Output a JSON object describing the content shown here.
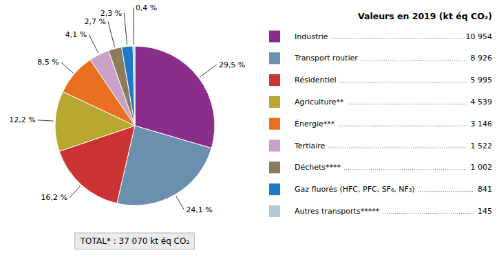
{
  "chart_data": {
    "type": "pie",
    "categories": [
      "Industrie",
      "Transport routier",
      "Résidentiel",
      "Agriculture**",
      "Énergie***",
      "Tertiaire",
      "Déchets****",
      "Gaz fluorés (HFC, PFC, SF₆, NF₃)",
      "Autres transports*****"
    ],
    "values": [
      10954,
      8926,
      5995,
      4539,
      3146,
      1522,
      1002,
      841,
      145
    ],
    "value_labels": [
      "10 954",
      "8 926",
      "5 995",
      "4 539",
      "3 146",
      "1 522",
      "1 002",
      "841",
      "145"
    ],
    "shares": [
      29.5,
      24.1,
      16.2,
      12.2,
      8.5,
      4.1,
      2.7,
      2.3,
      0.4
    ],
    "share_labels": [
      "29,5 %",
      "24,1 %",
      "16,2 %",
      "12,2 %",
      "8,5 %",
      "4,1 %",
      "2,7 %",
      "2,3 %",
      "0,4 %"
    ],
    "colors": [
      "#8B2D8B",
      "#6B8FAF",
      "#CC3333",
      "#B8A830",
      "#E87020",
      "#C8A0C8",
      "#8B7D5A",
      "#1E7AC8",
      "#B0C8D8"
    ],
    "legend_title": "Valeurs en 2019 (kt éq CO₂)",
    "annotation": "TOTAL* : 37 070 kt éq CO₂",
    "legend": "right"
  }
}
